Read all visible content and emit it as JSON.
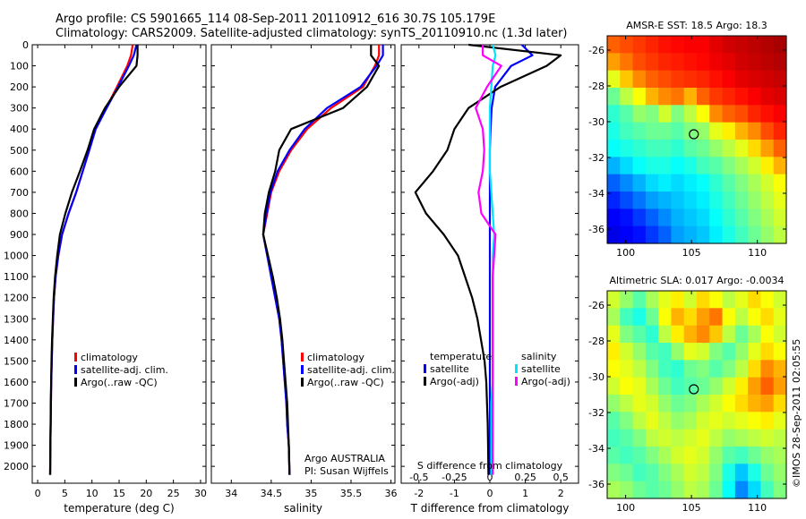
{
  "header": {
    "line1": "Argo profile: CS 5901665_114 08-Sep-2011 20110912_616 30.7S 105.179E",
    "line2": "Climatology: CARS2009. Satellite-adjusted climatology: synTS_20110910.nc (1.3d later)"
  },
  "footer": {
    "copyright": "©IMOS 28-Sep-2011 02:05:55",
    "institution": "Argo AUSTRALIA",
    "pi": "PI: Susan Wijffels"
  },
  "colors": {
    "climatology": "#ff0000",
    "satellite": "#0000ff",
    "argo": "#000000",
    "s_satellite": "#00e5ff",
    "s_argo": "#ff00ff"
  },
  "chart_data": [
    {
      "type": "line",
      "panel": "temperature",
      "xlabel": "temperature (deg C)",
      "ylabel": "",
      "xlim": [
        -1,
        31
      ],
      "ylim": [
        2080,
        0
      ],
      "xticks": [
        0,
        5,
        10,
        15,
        20,
        25,
        30
      ],
      "yticks": [
        0,
        100,
        200,
        300,
        400,
        500,
        600,
        700,
        800,
        900,
        1000,
        1100,
        1200,
        1300,
        1400,
        1500,
        1600,
        1700,
        1800,
        1900,
        2000
      ],
      "legend": [
        "climatology",
        "satellite-adj. clim.",
        "Argo(..raw -QC)"
      ],
      "series": [
        {
          "name": "climatology",
          "x": [
            17.5,
            17.2,
            16.5,
            14.6,
            12.6,
            10.6,
            9.5,
            8.3,
            7.1,
            5.7,
            4.5,
            3.8,
            3.3,
            3.0,
            2.85,
            2.7,
            2.6,
            2.5,
            2.45,
            2.4,
            2.35,
            2.3
          ],
          "depth": [
            0,
            50,
            100,
            200,
            300,
            400,
            500,
            600,
            700,
            800,
            900,
            1000,
            1100,
            1200,
            1300,
            1400,
            1500,
            1600,
            1700,
            1800,
            1900,
            2040
          ]
        },
        {
          "name": "satellite-adj. clim.",
          "x": [
            18.2,
            17.7,
            16.8,
            14.8,
            12.7,
            10.7,
            9.5,
            8.3,
            7.1,
            5.7,
            4.5,
            3.8,
            3.3,
            3.0,
            2.85,
            2.7,
            2.6,
            2.5,
            2.45,
            2.4,
            2.35,
            2.3
          ],
          "depth": [
            0,
            50,
            100,
            200,
            300,
            400,
            500,
            600,
            700,
            800,
            900,
            1000,
            1100,
            1200,
            1300,
            1400,
            1500,
            1600,
            1700,
            1800,
            1900,
            2040
          ]
        },
        {
          "name": "Argo(..raw -QC)",
          "x": [
            18.4,
            18.4,
            18.2,
            15.0,
            12.4,
            10.4,
            9.2,
            7.8,
            6.3,
            5.1,
            4.1,
            3.6,
            3.2,
            2.95,
            2.8,
            2.65,
            2.55,
            2.48,
            2.42,
            2.38,
            2.33,
            2.3
          ],
          "depth": [
            0,
            50,
            100,
            200,
            300,
            400,
            500,
            600,
            700,
            800,
            900,
            1000,
            1100,
            1200,
            1300,
            1400,
            1500,
            1600,
            1700,
            1800,
            1900,
            2040
          ]
        }
      ]
    },
    {
      "type": "line",
      "panel": "salinity",
      "xlabel": "salinity",
      "ylabel": "",
      "xlim": [
        33.75,
        36.05
      ],
      "ylim": [
        2080,
        0
      ],
      "xticks": [
        34,
        34.5,
        35,
        35.5,
        36
      ],
      "legend": [
        "climatology",
        "satellite-adj. clim.",
        "Argo(..raw -QC)"
      ],
      "series": [
        {
          "name": "climatology",
          "x": [
            35.85,
            35.85,
            35.8,
            35.65,
            35.25,
            34.95,
            34.75,
            34.6,
            34.5,
            34.45,
            34.4,
            34.45,
            34.5,
            34.55,
            34.6,
            34.63,
            34.65,
            34.67,
            34.69,
            34.7,
            34.72,
            34.73
          ],
          "depth": [
            0,
            50,
            100,
            200,
            300,
            400,
            500,
            600,
            700,
            800,
            900,
            1000,
            1100,
            1200,
            1300,
            1400,
            1500,
            1600,
            1700,
            1800,
            1900,
            2040
          ]
        },
        {
          "name": "satellite-adj. clim.",
          "x": [
            35.9,
            35.9,
            35.82,
            35.62,
            35.2,
            34.92,
            34.73,
            34.58,
            34.49,
            34.44,
            34.4,
            34.45,
            34.5,
            34.55,
            34.6,
            34.63,
            34.65,
            34.67,
            34.69,
            34.7,
            34.72,
            34.73
          ],
          "depth": [
            0,
            50,
            100,
            200,
            300,
            400,
            500,
            600,
            700,
            800,
            900,
            1000,
            1100,
            1200,
            1300,
            1400,
            1500,
            1600,
            1700,
            1800,
            1900,
            2040
          ]
        },
        {
          "name": "Argo(..raw -QC)",
          "x": [
            35.75,
            35.75,
            35.85,
            35.7,
            35.4,
            34.75,
            34.6,
            34.55,
            34.47,
            34.42,
            34.4,
            34.46,
            34.52,
            34.57,
            34.61,
            34.64,
            34.66,
            34.68,
            34.7,
            34.71,
            34.72,
            34.73
          ],
          "depth": [
            0,
            50,
            100,
            200,
            300,
            400,
            500,
            600,
            700,
            800,
            900,
            1000,
            1100,
            1200,
            1300,
            1400,
            1500,
            1600,
            1700,
            1800,
            1900,
            2040
          ]
        }
      ]
    },
    {
      "type": "line",
      "panel": "difference",
      "xlabel_top": "S difference from climatology",
      "xlabel": "T difference from climatology",
      "xlim_T": [
        -2.5,
        2.5
      ],
      "xticks_T": [
        -2,
        -1,
        0,
        1,
        2
      ],
      "xlim_S": [
        -0.625,
        0.625
      ],
      "xticks_S": [
        -0.5,
        -0.25,
        0,
        0.25,
        0.5
      ],
      "xticklabels_S": [
        "-0.5",
        "-0.25",
        "0",
        "0.25",
        "0.5"
      ],
      "ylim": [
        2080,
        0
      ],
      "legend_titles": [
        "temperature",
        "salinity"
      ],
      "legend_T": [
        "satellite",
        "Argo(-adj)"
      ],
      "legend_S": [
        "satellite",
        "Argo(-adj)"
      ],
      "series": [
        {
          "name": "satellite",
          "group": "temperature",
          "x": [
            0.9,
            1.2,
            0.6,
            0.15,
            0.05,
            0.02,
            0.0,
            0.0,
            0.0,
            0.0,
            0.0,
            0.0,
            0.0,
            0.0,
            0.0,
            0.0,
            0.0,
            0.0,
            0.0,
            0.0,
            0.0,
            0.0
          ],
          "depth": [
            0,
            50,
            100,
            200,
            300,
            400,
            500,
            600,
            700,
            800,
            900,
            1000,
            1100,
            1200,
            1300,
            1400,
            1500,
            1600,
            1700,
            1800,
            1900,
            2040
          ]
        },
        {
          "name": "Argo(-adj)",
          "group": "temperature",
          "x": [
            -0.6,
            2.0,
            1.6,
            0.3,
            -0.6,
            -1.0,
            -1.2,
            -1.6,
            -2.1,
            -1.8,
            -1.3,
            -0.9,
            -0.7,
            -0.5,
            -0.35,
            -0.25,
            -0.15,
            -0.1,
            -0.08,
            -0.06,
            -0.05,
            -0.04
          ],
          "depth": [
            0,
            50,
            100,
            200,
            300,
            400,
            500,
            600,
            700,
            800,
            900,
            1000,
            1100,
            1200,
            1300,
            1400,
            1500,
            1600,
            1700,
            1800,
            1900,
            2040
          ]
        },
        {
          "name": "satellite",
          "group": "salinity",
          "x": [
            0.02,
            0.04,
            0.02,
            0.01,
            0.0,
            0.0,
            0.0,
            0.0,
            0.01,
            0.02,
            0.03,
            0.02,
            0.02,
            0.02,
            0.02,
            0.02,
            0.02,
            0.02,
            0.01,
            0.01,
            0.01,
            0.01
          ],
          "depth": [
            0,
            50,
            100,
            200,
            300,
            400,
            500,
            600,
            700,
            800,
            900,
            1000,
            1100,
            1200,
            1300,
            1400,
            1500,
            1600,
            1700,
            1800,
            1900,
            2040
          ]
        },
        {
          "name": "Argo(-adj)",
          "group": "salinity",
          "x": [
            -0.05,
            -0.05,
            0.08,
            -0.02,
            -0.1,
            -0.05,
            -0.04,
            -0.05,
            -0.08,
            -0.06,
            0.04,
            0.03,
            0.02,
            0.02,
            0.02,
            0.02,
            0.02,
            0.02,
            0.02,
            0.02,
            0.02,
            0.02
          ],
          "depth": [
            0,
            50,
            100,
            200,
            300,
            400,
            500,
            600,
            700,
            800,
            900,
            1000,
            1100,
            1200,
            1300,
            1400,
            1500,
            1600,
            1700,
            1800,
            1900,
            2040
          ]
        }
      ]
    },
    {
      "type": "heatmap",
      "panel": "sst-map",
      "title": "AMSR-E SST: 18.5 Argo: 18.3",
      "xlim": [
        98.6,
        112.2
      ],
      "ylim": [
        -36.8,
        -25.2
      ],
      "xticks": [
        100,
        105,
        110
      ],
      "yticks": [
        -26,
        -28,
        -30,
        -32,
        -34,
        -36
      ],
      "marker": {
        "lon": 105.179,
        "lat": -30.7
      },
      "colormap": "jet",
      "grid": [
        [
          0.78,
          0.8,
          0.82,
          0.84,
          0.86,
          0.87,
          0.88,
          0.88,
          0.9,
          0.92,
          0.93,
          0.94,
          0.95,
          0.96
        ],
        [
          0.72,
          0.76,
          0.8,
          0.82,
          0.84,
          0.85,
          0.86,
          0.87,
          0.89,
          0.9,
          0.92,
          0.93,
          0.94,
          0.95
        ],
        [
          0.6,
          0.68,
          0.74,
          0.78,
          0.8,
          0.82,
          0.83,
          0.84,
          0.86,
          0.88,
          0.9,
          0.91,
          0.92,
          0.93
        ],
        [
          0.48,
          0.56,
          0.62,
          0.7,
          0.74,
          0.76,
          0.7,
          0.78,
          0.82,
          0.84,
          0.86,
          0.88,
          0.9,
          0.91
        ],
        [
          0.42,
          0.46,
          0.52,
          0.5,
          0.58,
          0.5,
          0.56,
          0.62,
          0.74,
          0.78,
          0.8,
          0.84,
          0.86,
          0.88
        ],
        [
          0.4,
          0.44,
          0.46,
          0.48,
          0.48,
          0.46,
          0.5,
          0.52,
          0.6,
          0.64,
          0.7,
          0.74,
          0.8,
          0.84
        ],
        [
          0.38,
          0.4,
          0.42,
          0.44,
          0.44,
          0.42,
          0.46,
          0.48,
          0.52,
          0.56,
          0.6,
          0.66,
          0.72,
          0.78
        ],
        [
          0.3,
          0.34,
          0.38,
          0.4,
          0.4,
          0.38,
          0.4,
          0.44,
          0.46,
          0.5,
          0.54,
          0.58,
          0.64,
          0.7
        ],
        [
          0.22,
          0.26,
          0.3,
          0.34,
          0.36,
          0.34,
          0.36,
          0.38,
          0.42,
          0.46,
          0.5,
          0.54,
          0.58,
          0.62
        ],
        [
          0.16,
          0.2,
          0.24,
          0.28,
          0.3,
          0.32,
          0.34,
          0.36,
          0.4,
          0.44,
          0.48,
          0.52,
          0.56,
          0.6
        ],
        [
          0.12,
          0.14,
          0.18,
          0.22,
          0.26,
          0.3,
          0.32,
          0.34,
          0.38,
          0.42,
          0.46,
          0.5,
          0.54,
          0.58
        ],
        [
          0.1,
          0.12,
          0.14,
          0.18,
          0.22,
          0.28,
          0.3,
          0.32,
          0.36,
          0.4,
          0.44,
          0.48,
          0.52,
          0.56
        ]
      ]
    },
    {
      "type": "heatmap",
      "panel": "sla-map",
      "title": "Altimetric SLA: 0.017 Argo: -0.0034",
      "xlim": [
        98.6,
        112.2
      ],
      "ylim": [
        -36.8,
        -25.2
      ],
      "xticks": [
        100,
        105,
        110
      ],
      "yticks": [
        -26,
        -28,
        -30,
        -32,
        -34,
        -36
      ],
      "marker": {
        "lon": 105.179,
        "lat": -30.7
      },
      "colormap": "jet",
      "grid": [
        [
          0.58,
          0.52,
          0.46,
          0.54,
          0.6,
          0.64,
          0.58,
          0.66,
          0.62,
          0.56,
          0.6,
          0.66,
          0.62,
          0.58
        ],
        [
          0.54,
          0.44,
          0.4,
          0.48,
          0.62,
          0.7,
          0.66,
          0.72,
          0.76,
          0.62,
          0.56,
          0.62,
          0.66,
          0.6
        ],
        [
          0.6,
          0.5,
          0.46,
          0.42,
          0.56,
          0.64,
          0.7,
          0.74,
          0.68,
          0.56,
          0.48,
          0.54,
          0.62,
          0.58
        ],
        [
          0.64,
          0.58,
          0.52,
          0.46,
          0.44,
          0.52,
          0.6,
          0.58,
          0.5,
          0.46,
          0.52,
          0.6,
          0.66,
          0.62
        ],
        [
          0.62,
          0.6,
          0.56,
          0.5,
          0.44,
          0.42,
          0.48,
          0.5,
          0.46,
          0.5,
          0.56,
          0.66,
          0.74,
          0.7
        ],
        [
          0.58,
          0.62,
          0.6,
          0.54,
          0.48,
          0.44,
          0.46,
          0.48,
          0.52,
          0.58,
          0.64,
          0.72,
          0.78,
          0.72
        ],
        [
          0.52,
          0.56,
          0.6,
          0.58,
          0.52,
          0.48,
          0.5,
          0.54,
          0.58,
          0.62,
          0.66,
          0.7,
          0.72,
          0.66
        ],
        [
          0.46,
          0.5,
          0.56,
          0.6,
          0.56,
          0.52,
          0.54,
          0.58,
          0.6,
          0.58,
          0.6,
          0.62,
          0.64,
          0.6
        ],
        [
          0.44,
          0.46,
          0.5,
          0.56,
          0.58,
          0.56,
          0.58,
          0.6,
          0.56,
          0.52,
          0.54,
          0.56,
          0.58,
          0.56
        ],
        [
          0.46,
          0.44,
          0.46,
          0.5,
          0.54,
          0.58,
          0.6,
          0.58,
          0.52,
          0.46,
          0.44,
          0.48,
          0.52,
          0.54
        ],
        [
          0.5,
          0.48,
          0.44,
          0.46,
          0.5,
          0.54,
          0.58,
          0.56,
          0.5,
          0.4,
          0.32,
          0.4,
          0.48,
          0.52
        ],
        [
          0.54,
          0.52,
          0.48,
          0.46,
          0.48,
          0.52,
          0.56,
          0.54,
          0.48,
          0.38,
          0.26,
          0.34,
          0.44,
          0.5
        ]
      ]
    }
  ]
}
